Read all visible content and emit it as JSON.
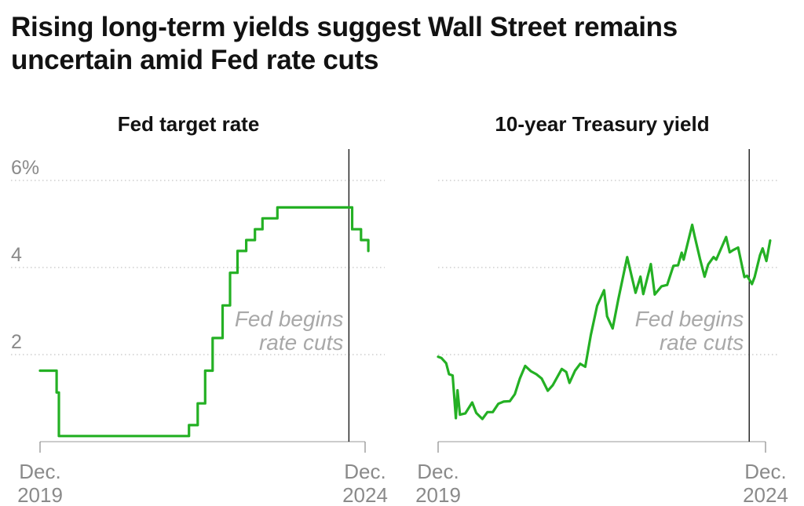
{
  "headline": "Rising long-term yields suggest Wall Street remains uncertain amid Fed rate cuts",
  "colors": {
    "series": "#24b024",
    "event_line": "#1a1a1a",
    "grid": "#c4c4c4",
    "muted_text": "#8a8a8a"
  },
  "chart_data": [
    {
      "type": "line",
      "title": "Fed target rate",
      "xlabel": "",
      "ylabel": "",
      "y_unit": "%",
      "ylim": [
        0,
        6
      ],
      "y_ticks": [
        {
          "value": 2,
          "label": "2"
        },
        {
          "value": 4,
          "label": "4"
        },
        {
          "value": 6,
          "label": "6%"
        }
      ],
      "grid": true,
      "x_range": [
        "2019-12",
        "2024-12"
      ],
      "x_labels": [
        {
          "date": "2019-12",
          "line1": "Dec.",
          "line2": "2019"
        },
        {
          "date": "2024-12",
          "line1": "Dec.",
          "line2": "2024"
        }
      ],
      "annotation": {
        "date": "2024-09",
        "line1": "Fed begins",
        "line2": "rate cuts"
      },
      "series": [
        {
          "step": true,
          "points": [
            [
              "2019-12-01",
              1.63
            ],
            [
              "2020-03-03",
              1.13
            ],
            [
              "2020-03-16",
              0.13
            ],
            [
              "2022-03-17",
              0.38
            ],
            [
              "2022-05-05",
              0.88
            ],
            [
              "2022-06-16",
              1.63
            ],
            [
              "2022-07-28",
              2.38
            ],
            [
              "2022-09-22",
              3.13
            ],
            [
              "2022-11-03",
              3.88
            ],
            [
              "2022-12-15",
              4.38
            ],
            [
              "2023-02-02",
              4.63
            ],
            [
              "2023-03-23",
              4.88
            ],
            [
              "2023-05-04",
              5.13
            ],
            [
              "2023-07-27",
              5.38
            ],
            [
              "2024-09-19",
              4.88
            ],
            [
              "2024-11-08",
              4.63
            ],
            [
              "2024-12-19",
              4.38
            ]
          ]
        }
      ]
    },
    {
      "type": "line",
      "title": "10-year Treasury yield",
      "xlabel": "",
      "ylabel": "",
      "ylim": [
        0,
        6
      ],
      "grid": true,
      "x_range": [
        "2019-12",
        "2024-12"
      ],
      "x_labels": [
        {
          "date": "2019-12",
          "line1": "Dec.",
          "line2": "2019"
        },
        {
          "date": "2024-12",
          "line1": "Dec.",
          "line2": "2024"
        }
      ],
      "annotation": {
        "date": "2024-09",
        "line1": "Fed begins",
        "line2": "rate cuts"
      },
      "series": [
        {
          "step": false,
          "points": [
            [
              "2019-12-01",
              1.95
            ],
            [
              "2019-12-20",
              1.92
            ],
            [
              "2020-01-15",
              1.8
            ],
            [
              "2020-01-31",
              1.55
            ],
            [
              "2020-02-20",
              1.52
            ],
            [
              "2020-03-09",
              0.54
            ],
            [
              "2020-03-18",
              1.18
            ],
            [
              "2020-04-01",
              0.62
            ],
            [
              "2020-05-01",
              0.65
            ],
            [
              "2020-06-08",
              0.9
            ],
            [
              "2020-07-01",
              0.66
            ],
            [
              "2020-08-04",
              0.52
            ],
            [
              "2020-09-01",
              0.68
            ],
            [
              "2020-10-01",
              0.68
            ],
            [
              "2020-11-01",
              0.87
            ],
            [
              "2020-12-01",
              0.92
            ],
            [
              "2021-01-04",
              0.93
            ],
            [
              "2021-02-01",
              1.09
            ],
            [
              "2021-03-01",
              1.45
            ],
            [
              "2021-03-31",
              1.74
            ],
            [
              "2021-05-01",
              1.62
            ],
            [
              "2021-06-01",
              1.55
            ],
            [
              "2021-07-01",
              1.45
            ],
            [
              "2021-08-04",
              1.17
            ],
            [
              "2021-09-01",
              1.3
            ],
            [
              "2021-10-21",
              1.67
            ],
            [
              "2021-11-15",
              1.6
            ],
            [
              "2021-12-03",
              1.35
            ],
            [
              "2022-01-03",
              1.63
            ],
            [
              "2022-02-01",
              1.79
            ],
            [
              "2022-03-01",
              1.72
            ],
            [
              "2022-04-01",
              2.45
            ],
            [
              "2022-05-06",
              3.12
            ],
            [
              "2022-06-14",
              3.48
            ],
            [
              "2022-07-01",
              2.88
            ],
            [
              "2022-08-01",
              2.6
            ],
            [
              "2022-09-01",
              3.26
            ],
            [
              "2022-10-21",
              4.24
            ],
            [
              "2022-11-15",
              3.8
            ],
            [
              "2022-12-07",
              3.42
            ],
            [
              "2023-01-03",
              3.79
            ],
            [
              "2023-01-19",
              3.39
            ],
            [
              "2023-03-02",
              4.08
            ],
            [
              "2023-03-24",
              3.38
            ],
            [
              "2023-05-01",
              3.57
            ],
            [
              "2023-06-01",
              3.6
            ],
            [
              "2023-07-06",
              4.04
            ],
            [
              "2023-08-01",
              4.05
            ],
            [
              "2023-08-21",
              4.34
            ],
            [
              "2023-09-01",
              4.18
            ],
            [
              "2023-10-19",
              4.98
            ],
            [
              "2023-11-01",
              4.73
            ],
            [
              "2023-12-01",
              4.2
            ],
            [
              "2023-12-27",
              3.79
            ],
            [
              "2024-01-16",
              4.07
            ],
            [
              "2024-02-15",
              4.24
            ],
            [
              "2024-03-01",
              4.18
            ],
            [
              "2024-04-25",
              4.7
            ],
            [
              "2024-05-15",
              4.35
            ],
            [
              "2024-06-03",
              4.4
            ],
            [
              "2024-07-01",
              4.46
            ],
            [
              "2024-08-05",
              3.78
            ],
            [
              "2024-08-20",
              3.81
            ],
            [
              "2024-09-16",
              3.62
            ],
            [
              "2024-10-01",
              3.78
            ],
            [
              "2024-10-31",
              4.28
            ],
            [
              "2024-11-15",
              4.44
            ],
            [
              "2024-12-06",
              4.15
            ],
            [
              "2024-12-27",
              4.62
            ]
          ]
        }
      ]
    }
  ]
}
